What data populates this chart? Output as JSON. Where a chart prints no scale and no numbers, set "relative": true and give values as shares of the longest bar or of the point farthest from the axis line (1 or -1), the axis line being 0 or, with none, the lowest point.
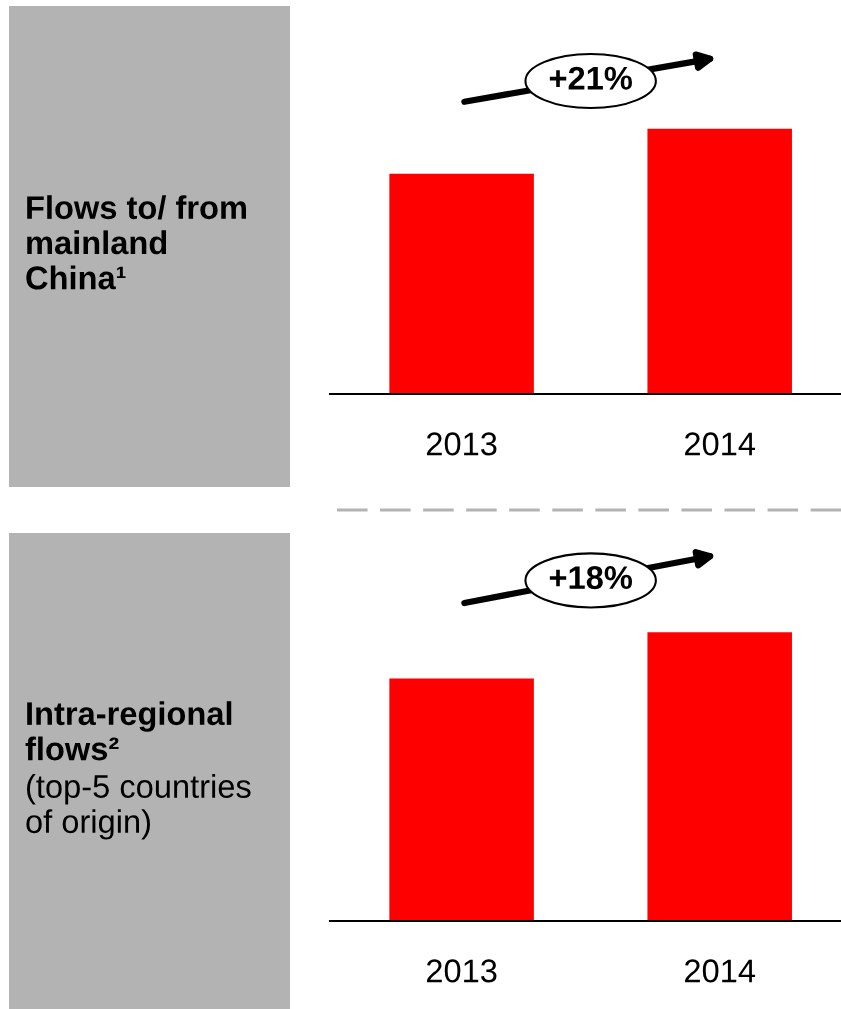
{
  "chart_data": [
    {
      "type": "bar",
      "title": "Flows to/ from mainland China¹",
      "categories": [
        "2013",
        "2014"
      ],
      "values": [
        0.83,
        1
      ],
      "color": "#ff0000",
      "relative": true,
      "annotations": [
        "+21%"
      ]
    },
    {
      "type": "bar",
      "title": "Intra-regional flows²",
      "subtitle": "(top-5 countries of origin)",
      "categories": [
        "2013",
        "2014"
      ],
      "values": [
        0.84,
        1
      ],
      "color": "#ff0000",
      "relative": true,
      "annotations": [
        "+18%"
      ]
    }
  ]
}
